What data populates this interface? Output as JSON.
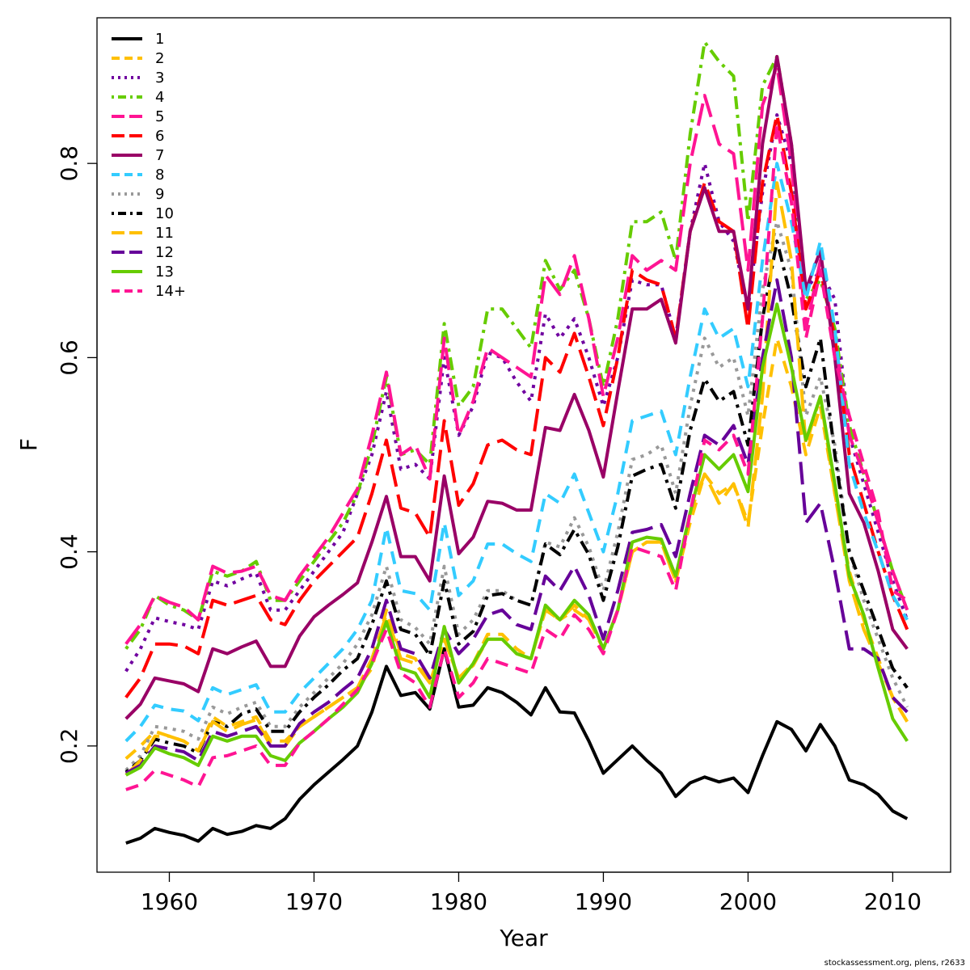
{
  "chart_data": {
    "type": "line",
    "xlabel": "Year",
    "ylabel": "F",
    "xlim": [
      1955,
      2014
    ],
    "ylim": [
      0.07,
      0.95
    ],
    "xticks": [
      1960,
      1970,
      1980,
      1990,
      2000,
      2010
    ],
    "yticks": [
      0.2,
      0.4,
      0.6,
      0.8
    ],
    "legend_position": "top-left",
    "grid": false,
    "x": [
      1957,
      1958,
      1959,
      1960,
      1961,
      1962,
      1963,
      1964,
      1965,
      1966,
      1967,
      1968,
      1969,
      1970,
      1971,
      1972,
      1973,
      1974,
      1975,
      1976,
      1977,
      1978,
      1979,
      1980,
      1981,
      1982,
      1983,
      1984,
      1985,
      1986,
      1987,
      1988,
      1989,
      1990,
      1991,
      1992,
      1993,
      1994,
      1995,
      1996,
      1997,
      1998,
      1999,
      2000,
      2001,
      2002,
      2003,
      2004,
      2005,
      2006,
      2007,
      2008,
      2009,
      2010,
      2011
    ],
    "series": [
      {
        "name": "1",
        "color": "#000000",
        "dash": "solid",
        "values": [
          0.1,
          0.105,
          0.115,
          0.111,
          0.108,
          0.102,
          0.115,
          0.109,
          0.112,
          0.118,
          0.115,
          0.125,
          0.145,
          0.16,
          0.173,
          0.186,
          0.2,
          0.235,
          0.282,
          0.252,
          0.255,
          0.238,
          0.3,
          0.24,
          0.242,
          0.26,
          0.255,
          0.245,
          0.232,
          0.26,
          0.235,
          0.234,
          0.205,
          0.172,
          0.186,
          0.2,
          0.185,
          0.172,
          0.148,
          0.162,
          0.168,
          0.163,
          0.167,
          0.152,
          0.19,
          0.225,
          0.217,
          0.195,
          0.222,
          0.2,
          0.165,
          0.16,
          0.15,
          0.133,
          0.125
        ]
      },
      {
        "name": "2",
        "color": "#FFC000",
        "dash": "dashed",
        "values": [
          0.187,
          0.2,
          0.215,
          0.21,
          0.205,
          0.195,
          0.23,
          0.22,
          0.225,
          0.23,
          0.205,
          0.205,
          0.22,
          0.23,
          0.24,
          0.25,
          0.26,
          0.28,
          0.34,
          0.295,
          0.29,
          0.265,
          0.31,
          0.27,
          0.285,
          0.315,
          0.315,
          0.3,
          0.29,
          0.34,
          0.33,
          0.34,
          0.33,
          0.3,
          0.34,
          0.4,
          0.41,
          0.41,
          0.37,
          0.43,
          0.48,
          0.46,
          0.47,
          0.43,
          0.53,
          0.62,
          0.57,
          0.5,
          0.55,
          0.46,
          0.38,
          0.33,
          0.29,
          0.25,
          0.225
        ]
      },
      {
        "name": "3",
        "color": "#7000A0",
        "dash": "dotted",
        "values": [
          0.277,
          0.3,
          0.332,
          0.328,
          0.325,
          0.32,
          0.37,
          0.365,
          0.372,
          0.378,
          0.34,
          0.34,
          0.36,
          0.38,
          0.4,
          0.42,
          0.46,
          0.5,
          0.565,
          0.485,
          0.49,
          0.475,
          0.6,
          0.52,
          0.55,
          0.605,
          0.6,
          0.575,
          0.555,
          0.645,
          0.62,
          0.64,
          0.6,
          0.55,
          0.6,
          0.68,
          0.675,
          0.675,
          0.62,
          0.73,
          0.8,
          0.74,
          0.72,
          0.65,
          0.77,
          0.85,
          0.8,
          0.67,
          0.69,
          0.66,
          0.52,
          0.47,
          0.42,
          0.37,
          0.33
        ]
      },
      {
        "name": "4",
        "color": "#66CC00",
        "dash": "dotdash",
        "values": [
          0.3,
          0.32,
          0.355,
          0.345,
          0.34,
          0.33,
          0.38,
          0.375,
          0.38,
          0.39,
          0.35,
          0.35,
          0.37,
          0.39,
          0.41,
          0.43,
          0.46,
          0.51,
          0.58,
          0.5,
          0.505,
          0.49,
          0.635,
          0.55,
          0.57,
          0.65,
          0.65,
          0.63,
          0.61,
          0.7,
          0.67,
          0.69,
          0.64,
          0.57,
          0.64,
          0.74,
          0.74,
          0.75,
          0.7,
          0.83,
          0.925,
          0.905,
          0.89,
          0.74,
          0.88,
          0.91,
          0.82,
          0.66,
          0.68,
          0.63,
          0.53,
          0.48,
          0.43,
          0.38,
          0.34
        ]
      },
      {
        "name": "5",
        "color": "#FF1493",
        "dash": "longdash",
        "values": [
          0.305,
          0.325,
          0.355,
          0.348,
          0.343,
          0.33,
          0.385,
          0.378,
          0.38,
          0.385,
          0.355,
          0.35,
          0.375,
          0.395,
          0.415,
          0.44,
          0.465,
          0.52,
          0.585,
          0.5,
          0.51,
          0.475,
          0.62,
          0.52,
          0.555,
          0.61,
          0.6,
          0.59,
          0.58,
          0.685,
          0.665,
          0.705,
          0.64,
          0.56,
          0.62,
          0.705,
          0.69,
          0.7,
          0.69,
          0.8,
          0.87,
          0.82,
          0.81,
          0.69,
          0.86,
          0.9,
          0.8,
          0.63,
          0.7,
          0.62,
          0.52,
          0.48,
          0.43,
          0.38,
          0.34
        ]
      },
      {
        "name": "6",
        "color": "#FF0000",
        "dash": "longdash",
        "values": [
          0.25,
          0.27,
          0.305,
          0.305,
          0.303,
          0.295,
          0.35,
          0.345,
          0.35,
          0.355,
          0.33,
          0.325,
          0.35,
          0.37,
          0.385,
          0.4,
          0.415,
          0.46,
          0.515,
          0.445,
          0.44,
          0.415,
          0.535,
          0.448,
          0.47,
          0.51,
          0.515,
          0.505,
          0.5,
          0.6,
          0.585,
          0.625,
          0.58,
          0.53,
          0.6,
          0.69,
          0.68,
          0.675,
          0.62,
          0.73,
          0.78,
          0.74,
          0.73,
          0.63,
          0.78,
          0.85,
          0.77,
          0.65,
          0.69,
          0.62,
          0.5,
          0.45,
          0.4,
          0.355,
          0.32
        ]
      },
      {
        "name": "7",
        "color": "#990066",
        "dash": "solid",
        "values": [
          0.228,
          0.243,
          0.27,
          0.267,
          0.264,
          0.256,
          0.3,
          0.295,
          0.302,
          0.308,
          0.282,
          0.282,
          0.313,
          0.333,
          0.345,
          0.356,
          0.368,
          0.41,
          0.457,
          0.395,
          0.395,
          0.37,
          0.478,
          0.398,
          0.415,
          0.452,
          0.45,
          0.443,
          0.443,
          0.528,
          0.525,
          0.562,
          0.525,
          0.477,
          0.565,
          0.65,
          0.65,
          0.66,
          0.615,
          0.73,
          0.775,
          0.73,
          0.73,
          0.65,
          0.82,
          0.91,
          0.82,
          0.67,
          0.71,
          0.6,
          0.46,
          0.43,
          0.38,
          0.32,
          0.3
        ]
      },
      {
        "name": "8",
        "color": "#33CCFF",
        "dash": "dashed",
        "values": [
          0.205,
          0.22,
          0.242,
          0.238,
          0.236,
          0.226,
          0.26,
          0.253,
          0.258,
          0.263,
          0.235,
          0.235,
          0.255,
          0.27,
          0.285,
          0.3,
          0.32,
          0.35,
          0.425,
          0.36,
          0.357,
          0.34,
          0.43,
          0.355,
          0.37,
          0.408,
          0.408,
          0.398,
          0.39,
          0.46,
          0.45,
          0.48,
          0.44,
          0.4,
          0.46,
          0.535,
          0.54,
          0.545,
          0.5,
          0.58,
          0.65,
          0.62,
          0.63,
          0.57,
          0.7,
          0.8,
          0.74,
          0.66,
          0.72,
          0.63,
          0.49,
          0.44,
          0.4,
          0.355,
          0.33
        ]
      },
      {
        "name": "9",
        "color": "#999999",
        "dash": "dotted",
        "values": [
          0.175,
          0.19,
          0.22,
          0.218,
          0.215,
          0.207,
          0.24,
          0.233,
          0.24,
          0.245,
          0.22,
          0.22,
          0.24,
          0.255,
          0.27,
          0.285,
          0.305,
          0.335,
          0.385,
          0.33,
          0.322,
          0.305,
          0.385,
          0.315,
          0.33,
          0.36,
          0.36,
          0.35,
          0.345,
          0.41,
          0.405,
          0.435,
          0.405,
          0.36,
          0.42,
          0.495,
          0.5,
          0.51,
          0.46,
          0.55,
          0.62,
          0.59,
          0.6,
          0.54,
          0.67,
          0.74,
          0.69,
          0.54,
          0.58,
          0.51,
          0.4,
          0.35,
          0.31,
          0.27,
          0.24
        ]
      },
      {
        "name": "10",
        "color": "#000000",
        "dash": "dotdash",
        "values": [
          0.173,
          0.185,
          0.207,
          0.203,
          0.2,
          0.193,
          0.225,
          0.22,
          0.233,
          0.238,
          0.215,
          0.215,
          0.235,
          0.25,
          0.263,
          0.278,
          0.29,
          0.325,
          0.37,
          0.32,
          0.315,
          0.293,
          0.37,
          0.305,
          0.318,
          0.355,
          0.357,
          0.35,
          0.345,
          0.408,
          0.397,
          0.423,
          0.397,
          0.35,
          0.405,
          0.478,
          0.485,
          0.49,
          0.445,
          0.525,
          0.578,
          0.555,
          0.565,
          0.51,
          0.64,
          0.72,
          0.66,
          0.57,
          0.62,
          0.5,
          0.4,
          0.36,
          0.32,
          0.28,
          0.26
        ]
      },
      {
        "name": "11",
        "color": "#FFC000",
        "dash": "longdash",
        "values": [
          0.17,
          0.185,
          0.21,
          0.21,
          0.205,
          0.195,
          0.225,
          0.215,
          0.222,
          0.227,
          0.2,
          0.2,
          0.22,
          0.23,
          0.24,
          0.25,
          0.26,
          0.29,
          0.335,
          0.29,
          0.285,
          0.265,
          0.31,
          0.27,
          0.283,
          0.31,
          0.31,
          0.295,
          0.29,
          0.34,
          0.33,
          0.345,
          0.33,
          0.3,
          0.34,
          0.4,
          0.41,
          0.41,
          0.37,
          0.44,
          0.48,
          0.45,
          0.47,
          0.425,
          0.56,
          0.78,
          0.7,
          0.51,
          0.56,
          0.46,
          0.37,
          0.32,
          0.285,
          0.25,
          0.225
        ]
      },
      {
        "name": "12",
        "color": "#660099",
        "dash": "longdash",
        "values": [
          0.172,
          0.18,
          0.2,
          0.197,
          0.194,
          0.185,
          0.215,
          0.21,
          0.215,
          0.22,
          0.2,
          0.2,
          0.223,
          0.235,
          0.245,
          0.258,
          0.27,
          0.3,
          0.35,
          0.3,
          0.295,
          0.27,
          0.32,
          0.295,
          0.31,
          0.335,
          0.34,
          0.325,
          0.32,
          0.375,
          0.36,
          0.385,
          0.355,
          0.31,
          0.36,
          0.42,
          0.423,
          0.428,
          0.395,
          0.46,
          0.52,
          0.51,
          0.53,
          0.49,
          0.6,
          0.68,
          0.6,
          0.43,
          0.45,
          0.38,
          0.3,
          0.3,
          0.29,
          0.25,
          0.235
        ]
      },
      {
        "name": "13",
        "color": "#66CC00",
        "dash": "solid",
        "values": [
          0.17,
          0.178,
          0.198,
          0.192,
          0.188,
          0.18,
          0.21,
          0.205,
          0.21,
          0.21,
          0.19,
          0.185,
          0.203,
          0.215,
          0.228,
          0.24,
          0.255,
          0.285,
          0.328,
          0.28,
          0.275,
          0.25,
          0.323,
          0.265,
          0.285,
          0.31,
          0.31,
          0.295,
          0.29,
          0.345,
          0.33,
          0.35,
          0.335,
          0.3,
          0.34,
          0.41,
          0.415,
          0.413,
          0.375,
          0.44,
          0.5,
          0.485,
          0.5,
          0.462,
          0.59,
          0.655,
          0.59,
          0.515,
          0.56,
          0.47,
          0.375,
          0.335,
          0.28,
          0.228,
          0.205
        ]
      },
      {
        "name": "14+",
        "color": "#FF1493",
        "dash": "dashed",
        "values": [
          0.155,
          0.16,
          0.175,
          0.17,
          0.165,
          0.158,
          0.188,
          0.19,
          0.195,
          0.2,
          0.18,
          0.18,
          0.203,
          0.215,
          0.228,
          0.243,
          0.258,
          0.285,
          0.32,
          0.275,
          0.265,
          0.24,
          0.3,
          0.25,
          0.265,
          0.29,
          0.285,
          0.28,
          0.275,
          0.32,
          0.31,
          0.335,
          0.32,
          0.295,
          0.34,
          0.405,
          0.4,
          0.395,
          0.36,
          0.44,
          0.515,
          0.505,
          0.52,
          0.48,
          0.64,
          0.84,
          0.76,
          0.62,
          0.69,
          0.6,
          0.54,
          0.49,
          0.44,
          0.36,
          0.35
        ]
      }
    ]
  },
  "footer": {
    "credit": "stockassessment.org, plens, r2633"
  }
}
